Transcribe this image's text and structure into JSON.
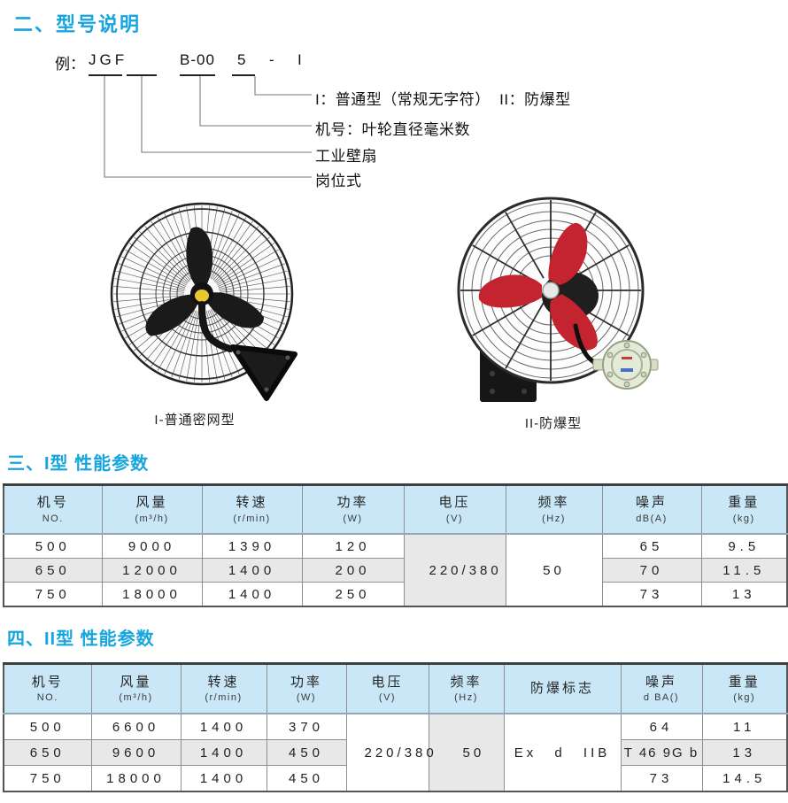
{
  "colors": {
    "accent": "#16A5DF",
    "table_header_bg": "#C9E7F7",
    "shaded_row_bg": "#E8E8E8",
    "blade_red": "#C42430",
    "junction_box_green": "#E3EAD8",
    "hub_yellow": "#E6C832"
  },
  "section2": {
    "title": "二、型号说明",
    "example": {
      "prefix": "例：",
      "code1": "JGF",
      "code2": "B-00",
      "code3": "5",
      "dash": "-",
      "code4": "I"
    },
    "callouts": [
      "I：普通型（常规无字符）  II：防爆型",
      "机号：叶轮直径毫米数",
      "工业壁扇",
      "岗位式"
    ],
    "figure_captions": [
      "I-普通密网型",
      "II-防爆型"
    ]
  },
  "section3": {
    "title": "三、I型 性能参数",
    "table": {
      "headers": [
        {
          "main": "机号",
          "sub": "NO."
        },
        {
          "main": "风量",
          "sub": "(m³/h)"
        },
        {
          "main": "转速",
          "sub": "(r/min)"
        },
        {
          "main": "功率",
          "sub": "(W)"
        },
        {
          "main": "电压",
          "sub": "(V)"
        },
        {
          "main": "频率",
          "sub": "(Hz)"
        },
        {
          "main": "噪声",
          "sub": "dB(A)"
        },
        {
          "main": "重量",
          "sub": "(kg)"
        }
      ],
      "model": [
        "500",
        "650",
        "750"
      ],
      "airflow": [
        "9000",
        "12000",
        "18000"
      ],
      "speed": [
        "1390",
        "1400",
        "1400"
      ],
      "power": [
        "120",
        "200",
        "250"
      ],
      "voltage": "220/380",
      "frequency": "50",
      "noise": [
        "65",
        "70",
        "73"
      ],
      "weight": [
        "9.5",
        "11.5",
        "13"
      ]
    }
  },
  "section4": {
    "title": "四、II型 性能参数",
    "table": {
      "headers": [
        {
          "main": "机号",
          "sub": "NO."
        },
        {
          "main": "风量",
          "sub": "(m³/h)"
        },
        {
          "main": "转速",
          "sub": "(r/min)"
        },
        {
          "main": "功率",
          "sub": "(W)"
        },
        {
          "main": "电压",
          "sub": "(V)"
        },
        {
          "main": "频率",
          "sub": "(Hz)"
        },
        {
          "main": "防爆标志",
          "sub": ""
        },
        {
          "main": "噪声",
          "sub": "d BA()"
        },
        {
          "main": "重量",
          "sub": "(kg)"
        }
      ],
      "model": [
        "500",
        "650",
        "750"
      ],
      "airflow": [
        "6600",
        "9600",
        "18000"
      ],
      "speed": [
        "1400",
        "1400",
        "1400"
      ],
      "power": [
        "370",
        "450",
        "450"
      ],
      "voltage": "220/380",
      "frequency": "50",
      "ex_mark": "Ex d IIB",
      "noise": [
        "64",
        "T 46 9G b",
        "73"
      ],
      "weight": [
        "11",
        "13",
        "14.5"
      ]
    }
  }
}
